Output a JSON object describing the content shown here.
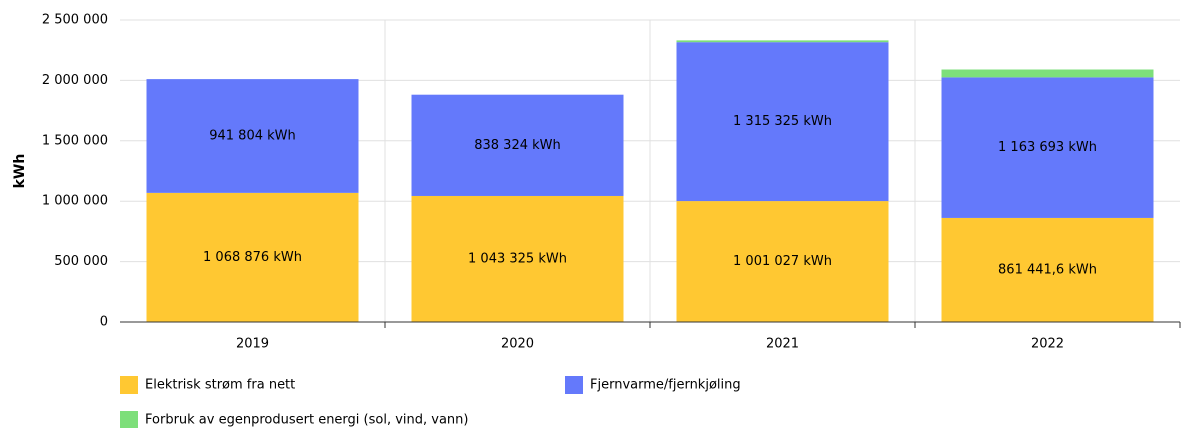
{
  "chart_data": {
    "type": "stacked_bar",
    "y_label": "kWh",
    "categories": [
      "2019",
      "2020",
      "2021",
      "2022"
    ],
    "series": [
      {
        "name": "Elektrisk strøm fra nett",
        "color": "#ffc832",
        "values": [
          1068876,
          1043325,
          1001027,
          861441.6
        ],
        "value_labels": [
          "1 068 876 kWh",
          "1 043 325 kWh",
          "1 001 027 kWh",
          "861 441,6 kWh"
        ]
      },
      {
        "name": "Fjernvarme/fjernkjøling",
        "color": "#6479fb",
        "values": [
          941804,
          838324,
          1315325,
          1163693
        ],
        "value_labels": [
          "941 804 kWh",
          "838 324 kWh",
          "1 315 325 kWh",
          "1 163 693 kWh"
        ]
      },
      {
        "name": "Forbruk av egenprodusert energi (sol, vind, vann)",
        "color": "#7ddf7a",
        "values": [
          0,
          0,
          15000,
          65000
        ]
      }
    ],
    "ylim": [
      0,
      2500000
    ],
    "yticks": [
      0,
      {
        "value": 500000,
        "label": "500 000"
      },
      {
        "value": 1000000,
        "label": "1 000 000"
      },
      {
        "value": 1500000,
        "label": "1 500 000"
      },
      {
        "value": 2000000,
        "label": "2 000 000"
      },
      {
        "value": 2500000,
        "label": "2 500 000"
      }
    ],
    "grid": true
  }
}
